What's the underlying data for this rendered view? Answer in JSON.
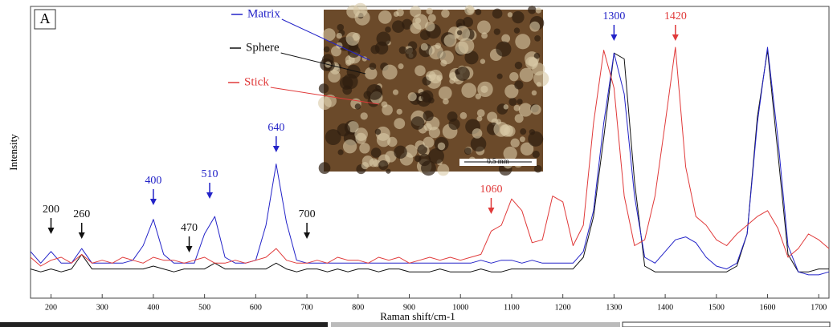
{
  "chart_data": {
    "type": "line",
    "panel_label": "A",
    "xlabel": "Raman shift/cm-1",
    "ylabel": "Intensity",
    "inset_scale_label": "0.5 mm",
    "xlim": [
      160,
      1720
    ],
    "xticks": [
      200,
      300,
      400,
      500,
      600,
      700,
      800,
      900,
      1000,
      1100,
      1200,
      1300,
      1400,
      1500,
      1600,
      1700
    ],
    "ylim": [
      0,
      100
    ],
    "x": [
      160,
      180,
      200,
      220,
      240,
      260,
      280,
      300,
      320,
      340,
      360,
      380,
      400,
      420,
      440,
      460,
      480,
      500,
      520,
      540,
      560,
      580,
      600,
      620,
      640,
      660,
      680,
      700,
      720,
      740,
      760,
      780,
      800,
      820,
      840,
      860,
      880,
      900,
      920,
      940,
      960,
      980,
      1000,
      1020,
      1040,
      1060,
      1080,
      1100,
      1120,
      1140,
      1160,
      1180,
      1200,
      1220,
      1240,
      1260,
      1280,
      1300,
      1320,
      1340,
      1360,
      1380,
      1400,
      1420,
      1440,
      1460,
      1480,
      1500,
      1520,
      1540,
      1560,
      1580,
      1600,
      1620,
      1640,
      1660,
      1680,
      1700,
      1720
    ],
    "series": [
      {
        "name": "Matrix",
        "color": "#2323c8",
        "values": [
          16,
          12,
          16,
          12,
          12,
          17,
          12,
          12,
          12,
          12,
          13,
          18,
          27,
          15,
          12,
          12,
          12,
          22,
          28,
          14,
          12,
          12,
          13,
          25,
          46,
          26,
          13,
          12,
          12,
          12,
          12,
          12,
          12,
          12,
          12,
          12,
          12,
          12,
          12,
          12,
          12,
          12,
          12,
          12,
          13,
          12,
          13,
          13,
          12,
          13,
          12,
          12,
          12,
          12,
          16,
          30,
          60,
          84,
          70,
          35,
          14,
          12,
          16,
          20,
          21,
          19,
          14,
          11,
          10,
          12,
          22,
          60,
          86,
          55,
          18,
          9,
          8,
          8,
          9
        ]
      },
      {
        "name": "Sphere",
        "color": "#111111",
        "values": [
          10,
          9,
          10,
          9,
          10,
          15,
          10,
          10,
          10,
          10,
          10,
          10,
          11,
          10,
          9,
          10,
          10,
          10,
          12,
          10,
          10,
          10,
          10,
          10,
          12,
          10,
          9,
          10,
          10,
          9,
          10,
          9,
          10,
          10,
          9,
          10,
          10,
          9,
          9,
          9,
          10,
          9,
          9,
          9,
          10,
          9,
          9,
          10,
          10,
          10,
          10,
          10,
          10,
          10,
          14,
          28,
          55,
          84,
          82,
          40,
          11,
          9,
          9,
          9,
          9,
          9,
          9,
          9,
          9,
          11,
          22,
          62,
          85,
          50,
          15,
          9,
          9,
          10,
          10
        ]
      },
      {
        "name": "Stick",
        "color": "#e03a3a",
        "values": [
          14,
          11,
          13,
          14,
          12,
          15,
          12,
          13,
          12,
          14,
          13,
          12,
          14,
          13,
          13,
          12,
          13,
          14,
          12,
          12,
          13,
          12,
          13,
          14,
          17,
          13,
          12,
          12,
          13,
          12,
          14,
          13,
          13,
          12,
          14,
          13,
          14,
          12,
          13,
          14,
          13,
          14,
          13,
          14,
          15,
          23,
          25,
          34,
          30,
          19,
          20,
          35,
          33,
          18,
          25,
          60,
          85,
          72,
          35,
          18,
          20,
          35,
          60,
          86,
          45,
          28,
          25,
          20,
          18,
          22,
          25,
          28,
          30,
          24,
          14,
          17,
          22,
          20,
          17
        ]
      }
    ],
    "annotations": [
      {
        "label": "200",
        "x": 200,
        "color": "#111111"
      },
      {
        "label": "260",
        "x": 260,
        "color": "#111111"
      },
      {
        "label": "400",
        "x": 400,
        "color": "#2323c8"
      },
      {
        "label": "470",
        "x": 470,
        "color": "#111111"
      },
      {
        "label": "510",
        "x": 510,
        "color": "#2323c8"
      },
      {
        "label": "640",
        "x": 640,
        "color": "#2323c8"
      },
      {
        "label": "700",
        "x": 700,
        "color": "#111111"
      },
      {
        "label": "1060",
        "x": 1060,
        "color": "#e03a3a"
      },
      {
        "label": "1300",
        "x": 1300,
        "color": "#2323c8"
      },
      {
        "label": "1420",
        "x": 1420,
        "color": "#e03a3a"
      }
    ]
  }
}
